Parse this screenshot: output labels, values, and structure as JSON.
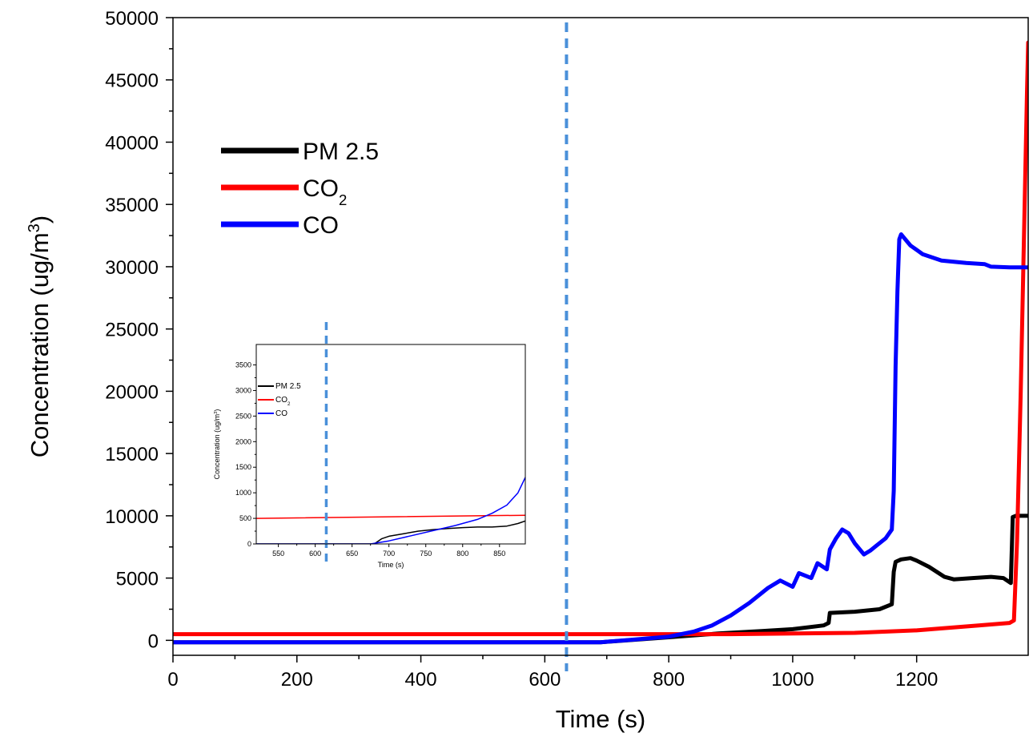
{
  "chart_data": [
    {
      "type": "line",
      "xlabel": "Time (s)",
      "ylabel": "Concentration (ug/m",
      "ylabel_sup": "3",
      "xlim": [
        0,
        1380
      ],
      "ylim": [
        -1200,
        50000
      ],
      "x_ticks": [
        0,
        200,
        400,
        600,
        800,
        1000,
        1200
      ],
      "x_tick_labels": [
        "0",
        "200",
        "400",
        "600",
        "800",
        "1000",
        "1200"
      ],
      "y_ticks": [
        0,
        5000,
        10000,
        15000,
        20000,
        25000,
        30000,
        35000,
        40000,
        45000,
        50000
      ],
      "y_tick_labels": [
        "0",
        "5000",
        "10000",
        "15000",
        "20000",
        "25000",
        "30000",
        "35000",
        "40000",
        "45000",
        "50000"
      ],
      "grid": false,
      "legend": "upper-left",
      "reference_line": {
        "x": 635,
        "style": "dashed",
        "color": "#4a90d9"
      },
      "series": [
        {
          "name": "PM 2.5",
          "color": "#000000",
          "points": [
            [
              0,
              -150
            ],
            [
              690,
              -150
            ],
            [
              800,
              250
            ],
            [
              880,
              550
            ],
            [
              950,
              750
            ],
            [
              1000,
              900
            ],
            [
              1050,
              1200
            ],
            [
              1058,
              1400
            ],
            [
              1060,
              2200
            ],
            [
              1100,
              2300
            ],
            [
              1140,
              2500
            ],
            [
              1160,
              2900
            ],
            [
              1163,
              5500
            ],
            [
              1166,
              6300
            ],
            [
              1175,
              6500
            ],
            [
              1190,
              6600
            ],
            [
              1200,
              6400
            ],
            [
              1220,
              5900
            ],
            [
              1245,
              5100
            ],
            [
              1260,
              4900
            ],
            [
              1290,
              5000
            ],
            [
              1320,
              5100
            ],
            [
              1340,
              5000
            ],
            [
              1352,
              4600
            ],
            [
              1355,
              9900
            ],
            [
              1360,
              10000
            ],
            [
              1380,
              10000
            ]
          ]
        },
        {
          "name": "CO",
          "name_sub": "2",
          "color": "#ff0000",
          "points": [
            [
              0,
              500
            ],
            [
              700,
              500
            ],
            [
              900,
              500
            ],
            [
              1100,
              600
            ],
            [
              1200,
              800
            ],
            [
              1300,
              1200
            ],
            [
              1350,
              1400
            ],
            [
              1357,
              1600
            ],
            [
              1362,
              8000
            ],
            [
              1368,
              20000
            ],
            [
              1373,
              32000
            ],
            [
              1378,
              44000
            ],
            [
              1380,
              48000
            ]
          ]
        },
        {
          "name": "CO",
          "color": "#0000ff",
          "points": [
            [
              0,
              -150
            ],
            [
              690,
              -150
            ],
            [
              740,
              50
            ],
            [
              800,
              300
            ],
            [
              840,
              700
            ],
            [
              870,
              1200
            ],
            [
              900,
              2000
            ],
            [
              930,
              3000
            ],
            [
              960,
              4200
            ],
            [
              980,
              4800
            ],
            [
              1000,
              4300
            ],
            [
              1010,
              5400
            ],
            [
              1030,
              5000
            ],
            [
              1040,
              6200
            ],
            [
              1055,
              5700
            ],
            [
              1060,
              7300
            ],
            [
              1070,
              8200
            ],
            [
              1080,
              8900
            ],
            [
              1090,
              8600
            ],
            [
              1100,
              7800
            ],
            [
              1115,
              6900
            ],
            [
              1125,
              7200
            ],
            [
              1135,
              7600
            ],
            [
              1150,
              8200
            ],
            [
              1160,
              8900
            ],
            [
              1163,
              12000
            ],
            [
              1166,
              22000
            ],
            [
              1169,
              28000
            ],
            [
              1172,
              32200
            ],
            [
              1175,
              32600
            ],
            [
              1190,
              31700
            ],
            [
              1210,
              31000
            ],
            [
              1240,
              30500
            ],
            [
              1280,
              30300
            ],
            [
              1310,
              30200
            ],
            [
              1320,
              30000
            ],
            [
              1350,
              29950
            ],
            [
              1380,
              29950
            ]
          ]
        }
      ]
    },
    {
      "type": "line",
      "xlabel": "Time (s)",
      "ylabel": "Concentration (ug/m",
      "ylabel_sup": "3",
      "xlim": [
        520,
        885
      ],
      "ylim": [
        0,
        3900
      ],
      "x_ticks": [
        550,
        600,
        650,
        700,
        750,
        800,
        850
      ],
      "x_tick_labels": [
        "550",
        "600",
        "650",
        "700",
        "750",
        "800",
        "850"
      ],
      "y_ticks": [
        0,
        500,
        1000,
        1500,
        2000,
        2500,
        3000,
        3500
      ],
      "y_tick_labels": [
        "0",
        "500",
        "1000",
        "1500",
        "2000",
        "2500",
        "3000",
        "3500"
      ],
      "grid": false,
      "legend": "upper-left",
      "reference_line": {
        "x": 615,
        "style": "dashed",
        "color": "#4a90d9"
      },
      "series": [
        {
          "name": "PM 2.5",
          "color": "#000000",
          "points": [
            [
              520,
              0
            ],
            [
              680,
              0
            ],
            [
              690,
              100
            ],
            [
              700,
              150
            ],
            [
              720,
              200
            ],
            [
              740,
              250
            ],
            [
              760,
              280
            ],
            [
              780,
              300
            ],
            [
              800,
              320
            ],
            [
              820,
              330
            ],
            [
              840,
              330
            ],
            [
              860,
              350
            ],
            [
              875,
              400
            ],
            [
              885,
              450
            ]
          ]
        },
        {
          "name": "CO",
          "name_sub": "2",
          "color": "#ff0000",
          "points": [
            [
              520,
              500
            ],
            [
              885,
              560
            ]
          ]
        },
        {
          "name": "CO",
          "color": "#0000ff",
          "points": [
            [
              520,
              0
            ],
            [
              675,
              0
            ],
            [
              700,
              60
            ],
            [
              730,
              160
            ],
            [
              760,
              260
            ],
            [
              790,
              360
            ],
            [
              820,
              480
            ],
            [
              840,
              600
            ],
            [
              860,
              760
            ],
            [
              875,
              1000
            ],
            [
              885,
              1300
            ]
          ]
        }
      ]
    }
  ]
}
